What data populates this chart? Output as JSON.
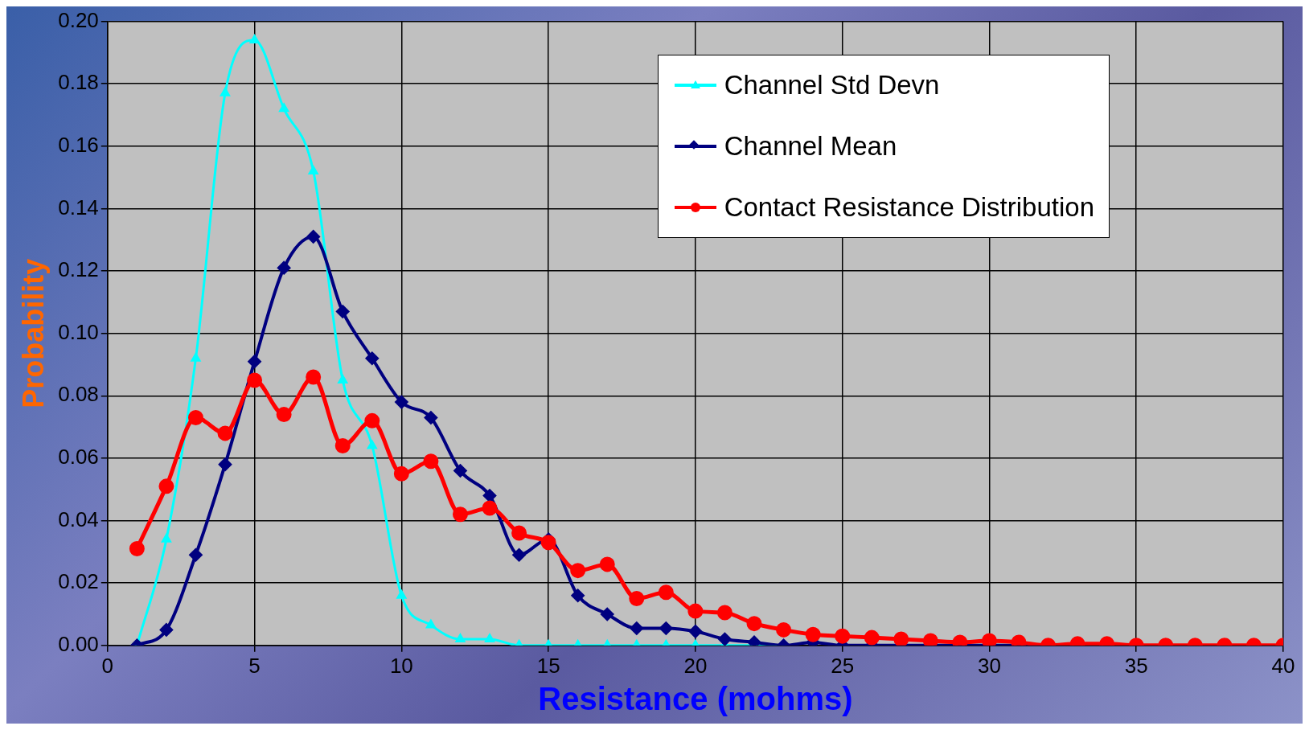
{
  "chart_data": {
    "type": "line",
    "xlabel": "Resistance (mohms)",
    "ylabel": "Probability",
    "x": [
      1,
      2,
      3,
      4,
      5,
      6,
      7,
      8,
      9,
      10,
      11,
      12,
      13,
      14,
      15,
      16,
      17,
      18,
      19,
      20,
      21,
      22,
      23,
      24,
      25,
      26,
      27,
      28,
      29,
      30,
      31,
      32,
      33,
      34,
      35,
      36,
      37,
      38,
      39,
      40
    ],
    "series": [
      {
        "name": "Channel Std Devn",
        "color": "#00ffff",
        "marker": "triangle",
        "values": [
          0,
          0.034,
          0.092,
          0.177,
          0.194,
          0.172,
          0.152,
          0.085,
          0.064,
          0.016,
          0.0065,
          0.002,
          0.002,
          0,
          0,
          0,
          0,
          0,
          0,
          0,
          0,
          0,
          0,
          null,
          null,
          null,
          null,
          null,
          null,
          null,
          null,
          null,
          null,
          null,
          null,
          null,
          null,
          null,
          null,
          null
        ]
      },
      {
        "name": "Channel Mean",
        "color": "#000080",
        "marker": "diamond",
        "values": [
          0,
          0.005,
          0.029,
          0.058,
          0.091,
          0.121,
          0.131,
          0.107,
          0.092,
          0.078,
          0.073,
          0.056,
          0.048,
          0.029,
          0.034,
          0.016,
          0.01,
          0.0055,
          0.0055,
          0.0045,
          0.002,
          0.001,
          0,
          0.001,
          0,
          0,
          0,
          0,
          0,
          0,
          0,
          0,
          null,
          null,
          null,
          null,
          null,
          null,
          null,
          null
        ]
      },
      {
        "name": "Contact Resistance Distribution",
        "color": "#ff0000",
        "marker": "circle",
        "values": [
          0.031,
          0.051,
          0.073,
          0.068,
          0.085,
          0.074,
          0.086,
          0.064,
          0.072,
          0.055,
          0.059,
          0.042,
          0.044,
          0.036,
          0.033,
          0.024,
          0.026,
          0.015,
          0.017,
          0.011,
          0.0105,
          0.007,
          0.005,
          0.0035,
          0.003,
          0.0025,
          0.002,
          0.0015,
          0.001,
          0.0015,
          0.001,
          0,
          0.0005,
          0.0005,
          0,
          0,
          0,
          0,
          0,
          0
        ]
      }
    ],
    "xlim": [
      0,
      40
    ],
    "xticks": [
      0,
      5,
      10,
      15,
      20,
      25,
      30,
      35,
      40
    ],
    "ylim": [
      0,
      0.2
    ],
    "yticks": [
      {
        "value": 0,
        "label": "0.00"
      },
      {
        "value": 0.02,
        "label": "0.02"
      },
      {
        "value": 0.04,
        "label": "0.04"
      },
      {
        "value": 0.06,
        "label": "0.06"
      },
      {
        "value": 0.08,
        "label": "0.08"
      },
      {
        "value": 0.1,
        "label": "0.10"
      },
      {
        "value": 0.12,
        "label": "0.12"
      },
      {
        "value": 0.14,
        "label": "0.14"
      },
      {
        "value": 0.16,
        "label": "0.16"
      },
      {
        "value": 0.18,
        "label": "0.18"
      },
      {
        "value": 0.2,
        "label": "0.20"
      }
    ],
    "grid": true,
    "legend": "top right",
    "line_style": "solid"
  }
}
